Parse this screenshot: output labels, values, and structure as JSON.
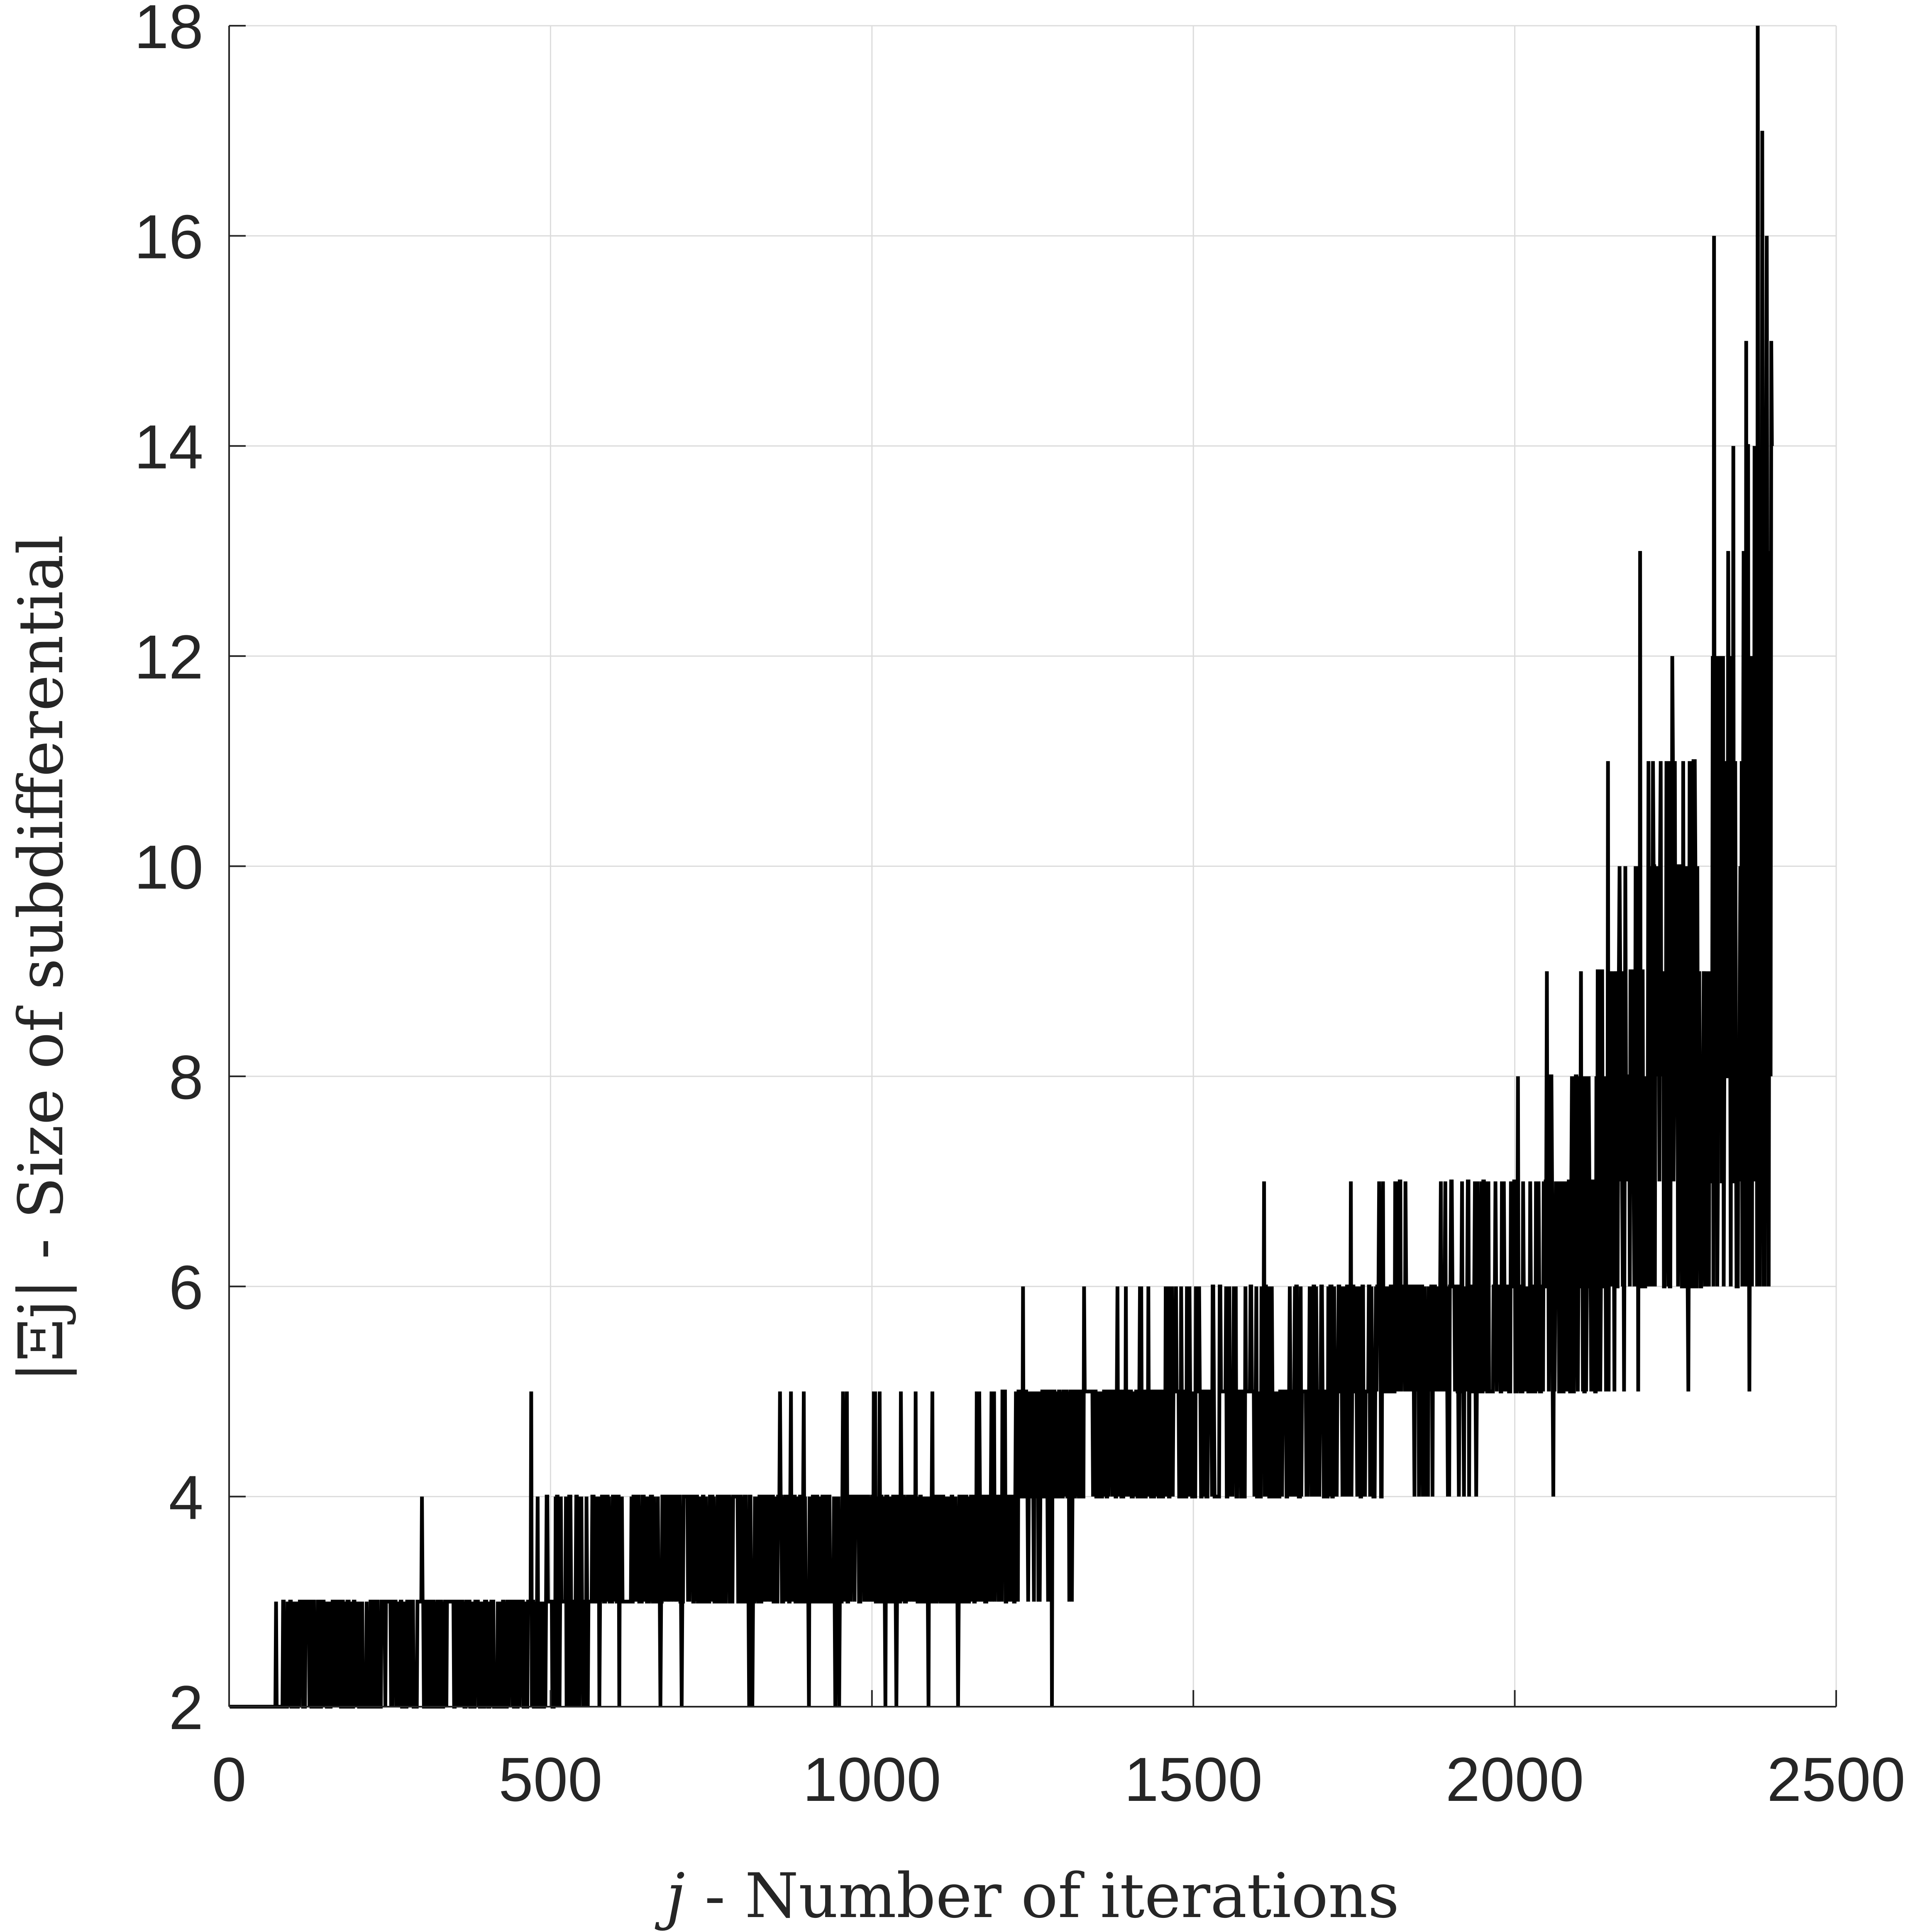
{
  "chart_data": {
    "type": "line",
    "title": "",
    "xlabel": {
      "symbol": "j",
      "text": " - Number of iterations"
    },
    "ylabel": {
      "symbol": "|Ξj|",
      "text": " - Size of subdifferential"
    },
    "xlim": [
      0,
      2500
    ],
    "ylim": [
      2,
      18
    ],
    "xticks": [
      0,
      500,
      1000,
      1500,
      2000,
      2500
    ],
    "yticks": [
      2,
      4,
      6,
      8,
      10,
      12,
      14,
      16,
      18
    ],
    "grid": true,
    "line_color": "#000000",
    "series": [
      {
        "x_start": 1,
        "x_end": 2400,
        "noise_seed": 7,
        "trend": [
          [
            0,
            2
          ],
          [
            80,
            2
          ],
          [
            90,
            2.5
          ],
          [
            450,
            2.5
          ],
          [
            600,
            3.5
          ],
          [
            1150,
            3.5
          ],
          [
            1300,
            4.5
          ],
          [
            1700,
            4.8
          ],
          [
            1800,
            5.5
          ],
          [
            2000,
            5.7
          ],
          [
            2100,
            6.5
          ],
          [
            2200,
            7.5
          ],
          [
            2300,
            8.5
          ],
          [
            2400,
            10
          ]
        ],
        "amplitude": [
          [
            0,
            0
          ],
          [
            85,
            0.6
          ],
          [
            500,
            0.8
          ],
          [
            1200,
            0.8
          ],
          [
            1700,
            0.9
          ],
          [
            2050,
            1.2
          ],
          [
            2200,
            2.2
          ],
          [
            2300,
            3
          ],
          [
            2400,
            4
          ]
        ],
        "min_clip": [
          [
            0,
            2
          ],
          [
            80,
            2
          ],
          [
            1300,
            2
          ],
          [
            1350,
            3
          ],
          [
            1500,
            4
          ],
          [
            1800,
            4
          ],
          [
            2100,
            5
          ],
          [
            2300,
            6
          ],
          [
            2400,
            6
          ]
        ],
        "spikes": [
          [
            300,
            4
          ],
          [
            470,
            5
          ],
          [
            902,
            2
          ],
          [
            1235,
            6
          ],
          [
            1280,
            2
          ],
          [
            1610,
            7
          ],
          [
            1745,
            7
          ],
          [
            2005,
            8
          ],
          [
            2050,
            9
          ],
          [
            2060,
            4
          ],
          [
            2145,
            11
          ],
          [
            2195,
            13
          ],
          [
            2245,
            12
          ],
          [
            2270,
            5
          ],
          [
            2310,
            16
          ],
          [
            2340,
            14
          ],
          [
            2350,
            9
          ],
          [
            2360,
            15
          ],
          [
            2365,
            5
          ],
          [
            2378,
            18
          ],
          [
            2385,
            17
          ],
          [
            2392,
            16
          ],
          [
            2395,
            6
          ]
        ]
      }
    ]
  }
}
